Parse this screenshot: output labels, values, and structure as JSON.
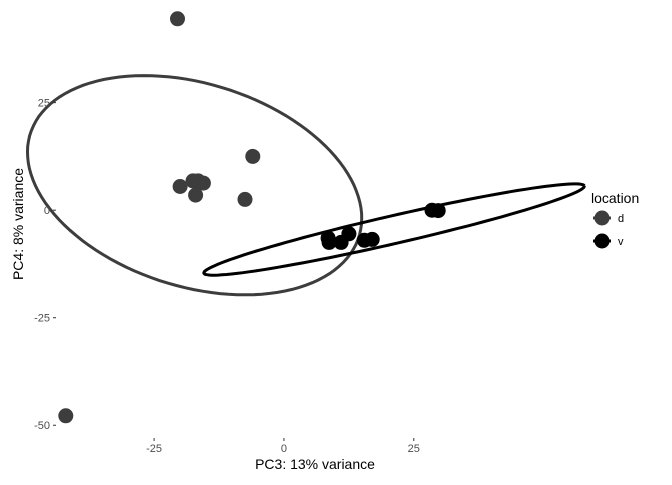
{
  "chart_data": {
    "type": "scatter",
    "xlabel": "PC3: 13% variance",
    "ylabel": "PC4: 8% variance",
    "xlim": [
      -43.5,
      57
    ],
    "ylim": [
      -52.5,
      47
    ],
    "xticks": [
      -25,
      0,
      25
    ],
    "yticks": [
      -50,
      -25,
      0,
      25
    ],
    "xtick_labels": [
      "-25",
      "0",
      "25"
    ],
    "ytick_labels": [
      "-50",
      "-25",
      "0",
      "25"
    ],
    "grid": false,
    "legend": {
      "title": "location",
      "placement": "right"
    },
    "series": [
      {
        "name": "d",
        "color": "#3d3d3d",
        "points": [
          [
            -20.5,
            44.5
          ],
          [
            -6.0,
            12.5
          ],
          [
            -20.0,
            5.5
          ],
          [
            -17.5,
            6.8
          ],
          [
            -16.5,
            6.8
          ],
          [
            -15.5,
            6.3
          ],
          [
            -17.0,
            3.5
          ],
          [
            -7.5,
            2.5
          ],
          [
            -42.0,
            -47.8
          ]
        ],
        "ellipse": {
          "center": [
            -17.2,
            5.8
          ],
          "semi_axes": [
            23.0,
            34.0
          ],
          "angle_deg": 64
        }
      },
      {
        "name": "v",
        "color": "#000000",
        "points": [
          [
            8.5,
            -6.5
          ],
          [
            8.7,
            -7.5
          ],
          [
            11.0,
            -7.5
          ],
          [
            12.5,
            -5.5
          ],
          [
            15.5,
            -7.0
          ],
          [
            17.0,
            -6.8
          ],
          [
            28.5,
            0.0
          ],
          [
            29.7,
            -0.1
          ]
        ],
        "ellipse": {
          "center": [
            21.2,
            -4.5
          ],
          "semi_axes": [
            38.0,
            3.2
          ],
          "angle_deg": 15.5
        }
      }
    ]
  }
}
